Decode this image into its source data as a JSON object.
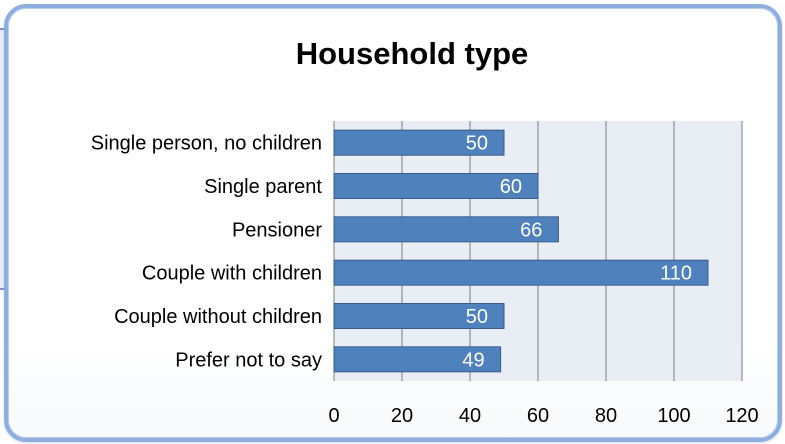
{
  "chart_data": {
    "type": "bar",
    "orientation": "horizontal",
    "title": "Household type",
    "xlabel": "",
    "ylabel": "",
    "categories": [
      "Single person, no children",
      "Single parent",
      "Pensioner",
      "Couple with children",
      "Couple without children",
      "Prefer not to say"
    ],
    "values": [
      50,
      60,
      66,
      110,
      50,
      49
    ],
    "xlim": [
      0,
      120
    ],
    "xticks": [
      0,
      20,
      40,
      60,
      80,
      100,
      120
    ],
    "grid": "vertical",
    "legend": "none",
    "data_labels": "inside-end"
  },
  "colors": {
    "bar_fill": "#4f81bd",
    "bar_stroke": "#385d8a",
    "plot_background": "#e9edf4",
    "gridline": "#7f7f7f",
    "frame_border": "#8eaee0",
    "label_text": "#000000",
    "data_label_text": "#ffffff"
  }
}
